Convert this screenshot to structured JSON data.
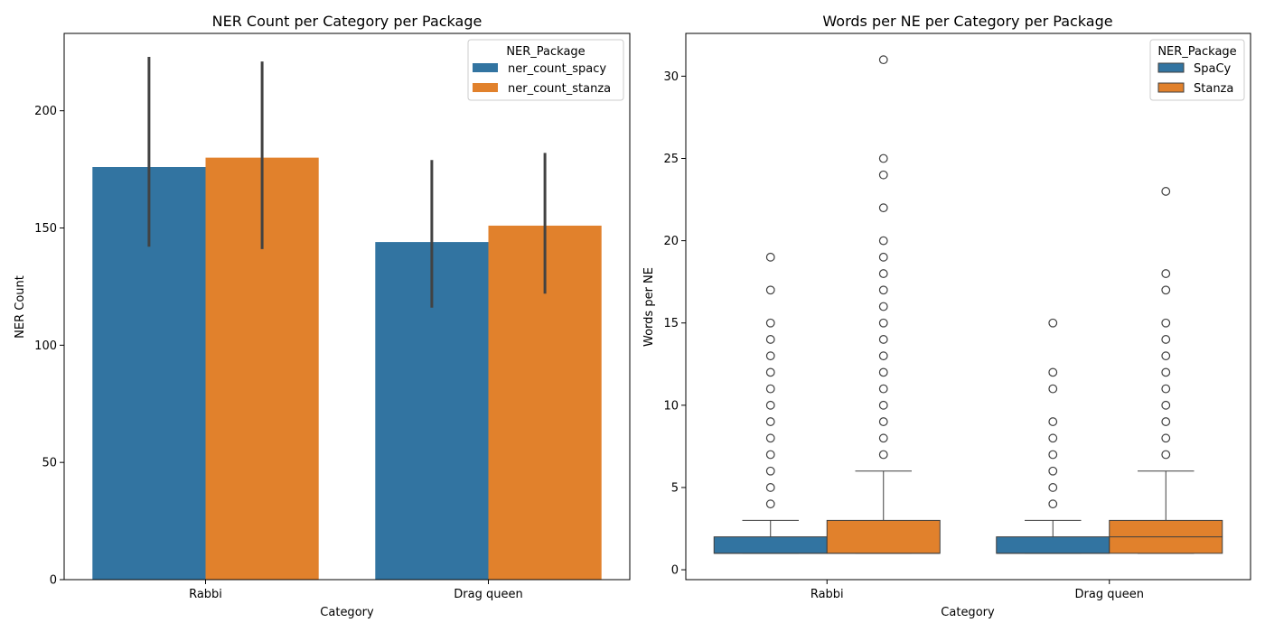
{
  "chart_data": [
    {
      "type": "bar",
      "title": "NER Count per Category per Package",
      "xlabel": "Category",
      "ylabel": "NER Count",
      "categories": [
        "Rabbi",
        "Drag queen"
      ],
      "ylim": [
        0,
        233
      ],
      "yticks": [
        0,
        50,
        100,
        150,
        200
      ],
      "legend": {
        "title": "NER_Package",
        "placement": "top-right"
      },
      "grid": false,
      "series": [
        {
          "name": "ner_count_spacy",
          "color": "#3274a1",
          "values": [
            176,
            144
          ],
          "ci": [
            [
              142,
              223
            ],
            [
              116,
              179
            ]
          ]
        },
        {
          "name": "ner_count_stanza",
          "color": "#e1812c",
          "values": [
            180,
            151
          ],
          "ci": [
            [
              141,
              221
            ],
            [
              122,
              182
            ]
          ]
        }
      ]
    },
    {
      "type": "box",
      "title": "Words per NE per Category per Package",
      "xlabel": "Category",
      "ylabel": "Words per NE",
      "categories": [
        "Rabbi",
        "Drag queen"
      ],
      "ylim": [
        -0.6,
        32.6
      ],
      "yticks": [
        0,
        5,
        10,
        15,
        20,
        25,
        30
      ],
      "legend": {
        "title": "NER_Package",
        "placement": "top-right"
      },
      "grid": false,
      "series": [
        {
          "name": "SpaCy",
          "color": "#3274a1",
          "boxes": [
            {
              "whisker_low": 1,
              "q1": 1,
              "median": 1,
              "q3": 2,
              "whisker_high": 3,
              "outliers": [
                4,
                5,
                6,
                7,
                8,
                9,
                10,
                11,
                12,
                13,
                14,
                15,
                17,
                19
              ]
            },
            {
              "whisker_low": 1,
              "q1": 1,
              "median": 1,
              "q3": 2,
              "whisker_high": 3,
              "outliers": [
                4,
                5,
                6,
                7,
                8,
                9,
                11,
                12,
                15
              ]
            }
          ]
        },
        {
          "name": "Stanza",
          "color": "#e1812c",
          "boxes": [
            {
              "whisker_low": 1,
              "q1": 1,
              "median": 1,
              "q3": 3,
              "whisker_high": 6,
              "outliers": [
                7,
                8,
                9,
                10,
                11,
                12,
                13,
                14,
                15,
                16,
                17,
                18,
                19,
                20,
                22,
                24,
                25,
                31
              ]
            },
            {
              "whisker_low": 1,
              "q1": 1,
              "median": 2,
              "q3": 3,
              "whisker_high": 6,
              "outliers": [
                7,
                8,
                9,
                10,
                11,
                12,
                13,
                14,
                15,
                17,
                18,
                23
              ]
            }
          ]
        }
      ]
    }
  ]
}
